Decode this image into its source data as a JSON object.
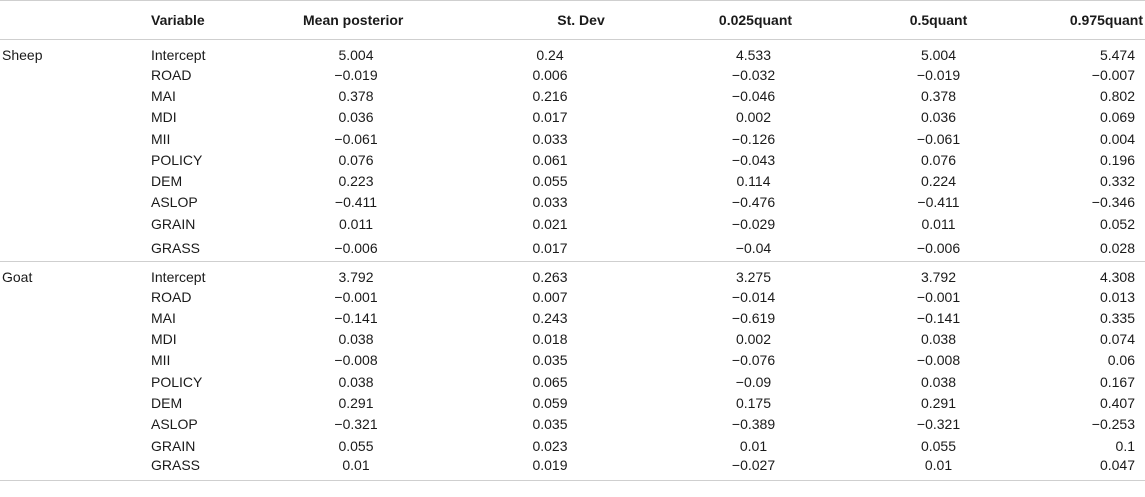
{
  "table": {
    "headers": {
      "group": "",
      "variable": "Variable",
      "mean": "Mean posterior",
      "sd": "St. Dev",
      "q025": "0.025quant",
      "q05": "0.5quant",
      "q975": "0.975quant"
    },
    "groups": [
      {
        "name": "Sheep",
        "rows": [
          {
            "variable": "Intercept",
            "mean": "5.004",
            "sd": "0.24",
            "q025": "4.533",
            "q05": "5.004",
            "q975": "5.474"
          },
          {
            "variable": "ROAD",
            "mean": "−0.019",
            "sd": "0.006",
            "q025": "−0.032",
            "q05": "−0.019",
            "q975": "−0.007"
          },
          {
            "variable": "MAI",
            "mean": "0.378",
            "sd": "0.216",
            "q025": "−0.046",
            "q05": "0.378",
            "q975": "0.802"
          },
          {
            "variable": "MDI",
            "mean": "0.036",
            "sd": "0.017",
            "q025": "0.002",
            "q05": "0.036",
            "q975": "0.069"
          },
          {
            "variable": "MII",
            "mean": "−0.061",
            "sd": "0.033",
            "q025": "−0.126",
            "q05": "−0.061",
            "q975": "0.004"
          },
          {
            "variable": "POLICY",
            "mean": "0.076",
            "sd": "0.061",
            "q025": "−0.043",
            "q05": "0.076",
            "q975": "0.196"
          },
          {
            "variable": "DEM",
            "mean": "0.223",
            "sd": "0.055",
            "q025": "0.114",
            "q05": "0.224",
            "q975": "0.332"
          },
          {
            "variable": "ASLOP",
            "mean": "−0.411",
            "sd": "0.033",
            "q025": "−0.476",
            "q05": "−0.411",
            "q975": "−0.346"
          },
          {
            "variable": "GRAIN",
            "mean": "0.011",
            "sd": "0.021",
            "q025": "−0.029",
            "q05": "0.011",
            "q975": "0.052"
          },
          {
            "variable": "GRASS",
            "mean": "−0.006",
            "sd": "0.017",
            "q025": "−0.04",
            "q05": "−0.006",
            "q975": "0.028"
          }
        ]
      },
      {
        "name": "Goat",
        "rows": [
          {
            "variable": "Intercept",
            "mean": "3.792",
            "sd": "0.263",
            "q025": "3.275",
            "q05": "3.792",
            "q975": "4.308"
          },
          {
            "variable": "ROAD",
            "mean": "−0.001",
            "sd": "0.007",
            "q025": "−0.014",
            "q05": "−0.001",
            "q975": "0.013"
          },
          {
            "variable": "MAI",
            "mean": "−0.141",
            "sd": "0.243",
            "q025": "−0.619",
            "q05": "−0.141",
            "q975": "0.335"
          },
          {
            "variable": "MDI",
            "mean": "0.038",
            "sd": "0.018",
            "q025": "0.002",
            "q05": "0.038",
            "q975": "0.074"
          },
          {
            "variable": "MII",
            "mean": "−0.008",
            "sd": "0.035",
            "q025": "−0.076",
            "q05": "−0.008",
            "q975": "0.06"
          },
          {
            "variable": "POLICY",
            "mean": "0.038",
            "sd": "0.065",
            "q025": "−0.09",
            "q05": "0.038",
            "q975": "0.167"
          },
          {
            "variable": "DEM",
            "mean": "0.291",
            "sd": "0.059",
            "q025": "0.175",
            "q05": "0.291",
            "q975": "0.407"
          },
          {
            "variable": "ASLOP",
            "mean": "−0.321",
            "sd": "0.035",
            "q025": "−0.389",
            "q05": "−0.321",
            "q975": "−0.253"
          },
          {
            "variable": "GRAIN",
            "mean": "0.055",
            "sd": "0.023",
            "q025": "0.01",
            "q05": "0.055",
            "q975": "0.1"
          },
          {
            "variable": "GRASS",
            "mean": "0.01",
            "sd": "0.019",
            "q025": "−0.027",
            "q05": "0.01",
            "q975": "0.047"
          }
        ]
      }
    ]
  }
}
